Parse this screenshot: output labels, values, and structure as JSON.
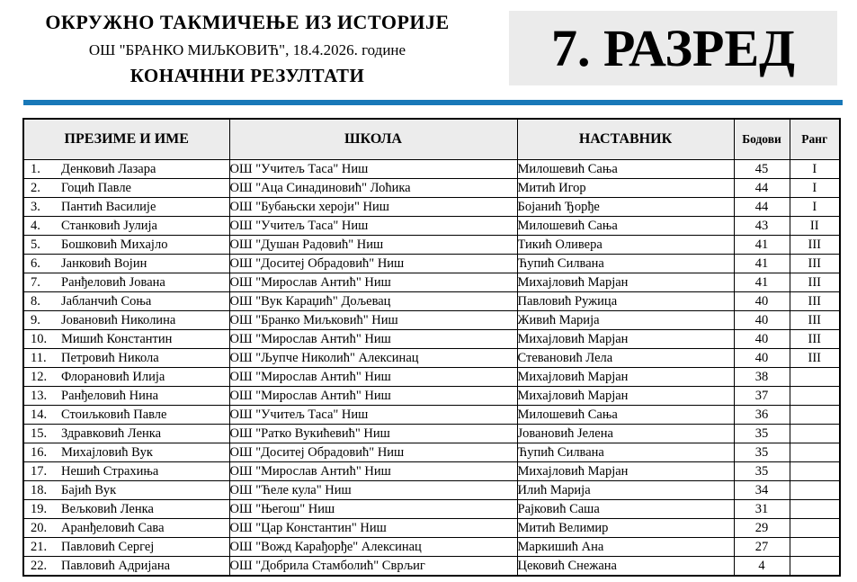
{
  "header": {
    "title_line1": "ОКРУЖНО ТАКМИЧЕЊЕ ИЗ ИСТОРИЈЕ",
    "title_line2": "ОШ \"БРАНКО МИЉКОВИЋ\", 18.4.2026. године",
    "title_line3": "КОНАЧННИ РЕЗУЛТАТИ",
    "grade_label": "7. РАЗРЕД"
  },
  "colors": {
    "accent_blue": "#1878b8",
    "table_header_bg": "#ececec",
    "grade_box_bg": "#ebebeb"
  },
  "table": {
    "headers": {
      "name": "ПРЕЗИМЕ И ИМЕ",
      "school": "ШКОЛА",
      "teacher": "НАСТАВНИК",
      "points": "Бодови",
      "rank": "Ранг"
    },
    "rows": [
      {
        "num": "1.",
        "name": "Денковић Лазара",
        "school": "ОШ \"Учитељ Таса\" Ниш",
        "teacher": "Милошевић Сања",
        "points": "45",
        "rank": "I"
      },
      {
        "num": "2.",
        "name": "Гоцић Павле",
        "school": "ОШ \"Аца Синадиновић\" Лоћика",
        "teacher": "Митић Игор",
        "points": "44",
        "rank": "I"
      },
      {
        "num": "3.",
        "name": "Пантић Василије",
        "school": "ОШ \"Бубањски хероји\" Ниш",
        "teacher": "Бојанић Ђорђе",
        "points": "44",
        "rank": "I"
      },
      {
        "num": "4.",
        "name": "Станковић Јулија",
        "school": "ОШ \"Учитељ Таса\" Ниш",
        "teacher": "Милошевић Сања",
        "points": "43",
        "rank": "II"
      },
      {
        "num": "5.",
        "name": "Бошковић Михајло",
        "school": "ОШ \"Душан Радовић\" Ниш",
        "teacher": "Тикић Оливера",
        "points": "41",
        "rank": "III"
      },
      {
        "num": "6.",
        "name": "Јанковић Војин",
        "school": "ОШ \"Доситеј Обрадовић\" Ниш",
        "teacher": "Ћупић Силвана",
        "points": "41",
        "rank": "III"
      },
      {
        "num": "7.",
        "name": "Ранђеловић Јована",
        "school": "ОШ \"Мирослав Антић\" Ниш",
        "teacher": "Михајловић Марјан",
        "points": "41",
        "rank": "III"
      },
      {
        "num": "8.",
        "name": "Јабланчић Соња",
        "school": "ОШ \"Вук Караџић\" Дољевац",
        "teacher": "Павловић Ружица",
        "points": "40",
        "rank": "III"
      },
      {
        "num": "9.",
        "name": "Јовановић Николина",
        "school": "ОШ \"Бранко Миљковић\" Ниш",
        "teacher": "Живић Марија",
        "points": "40",
        "rank": "III"
      },
      {
        "num": "10.",
        "name": "Мишић Константин",
        "school": "ОШ \"Мирослав Антић\" Ниш",
        "teacher": "Михајловић Марјан",
        "points": "40",
        "rank": "III"
      },
      {
        "num": "11.",
        "name": "Петровић Никола",
        "school": "ОШ \"Љупче Николић\" Алексинац",
        "teacher": "Стевановић Лела",
        "points": "40",
        "rank": "III"
      },
      {
        "num": "12.",
        "name": "Флорановић Илија",
        "school": "ОШ \"Мирослав Антић\" Ниш",
        "teacher": "Михајловић Марјан",
        "points": "38",
        "rank": ""
      },
      {
        "num": "13.",
        "name": "Ранђеловић Нина",
        "school": "ОШ \"Мирослав Антић\" Ниш",
        "teacher": "Михајловић Марјан",
        "points": "37",
        "rank": ""
      },
      {
        "num": "14.",
        "name": "Стоиљковић Павле",
        "school": "ОШ \"Учитељ Таса\" Ниш",
        "teacher": "Милошевић Сања",
        "points": "36",
        "rank": ""
      },
      {
        "num": "15.",
        "name": "Здравковић Ленка",
        "school": "ОШ \"Ратко Вукићевић\" Ниш",
        "teacher": "Јовановић Јелена",
        "points": "35",
        "rank": ""
      },
      {
        "num": "16.",
        "name": "Михајловић Вук",
        "school": "ОШ \"Доситеј Обрадовић\" Ниш",
        "teacher": "Ћупић Силвана",
        "points": "35",
        "rank": ""
      },
      {
        "num": "17.",
        "name": "Нешић Страхиња",
        "school": "ОШ \"Мирослав Антић\" Ниш",
        "teacher": "Михајловић Марјан",
        "points": "35",
        "rank": ""
      },
      {
        "num": "18.",
        "name": "Бајић Вук",
        "school": "ОШ \"Ћеле кула\" Ниш",
        "teacher": "Илић Марија",
        "points": "34",
        "rank": ""
      },
      {
        "num": "19.",
        "name": "Вељковић Ленка",
        "school": "ОШ \"Његош\" Ниш",
        "teacher": "Рајковић Саша",
        "points": "31",
        "rank": ""
      },
      {
        "num": "20.",
        "name": "Аранђеловић Сава",
        "school": "ОШ \"Цар Константин\" Ниш",
        "teacher": "Митић Велимир",
        "points": "29",
        "rank": ""
      },
      {
        "num": "21.",
        "name": "Павловић Сергеј",
        "school": "ОШ \"Вожд Карађорђе\" Алексинац",
        "teacher": "Маркишић Ана",
        "points": "27",
        "rank": ""
      },
      {
        "num": "22.",
        "name": "Павловић Адријана",
        "school": "ОШ \"Добрила Стамболић\" Сврљиг",
        "teacher": "Цековић Снежана",
        "points": "4",
        "rank": ""
      }
    ]
  }
}
